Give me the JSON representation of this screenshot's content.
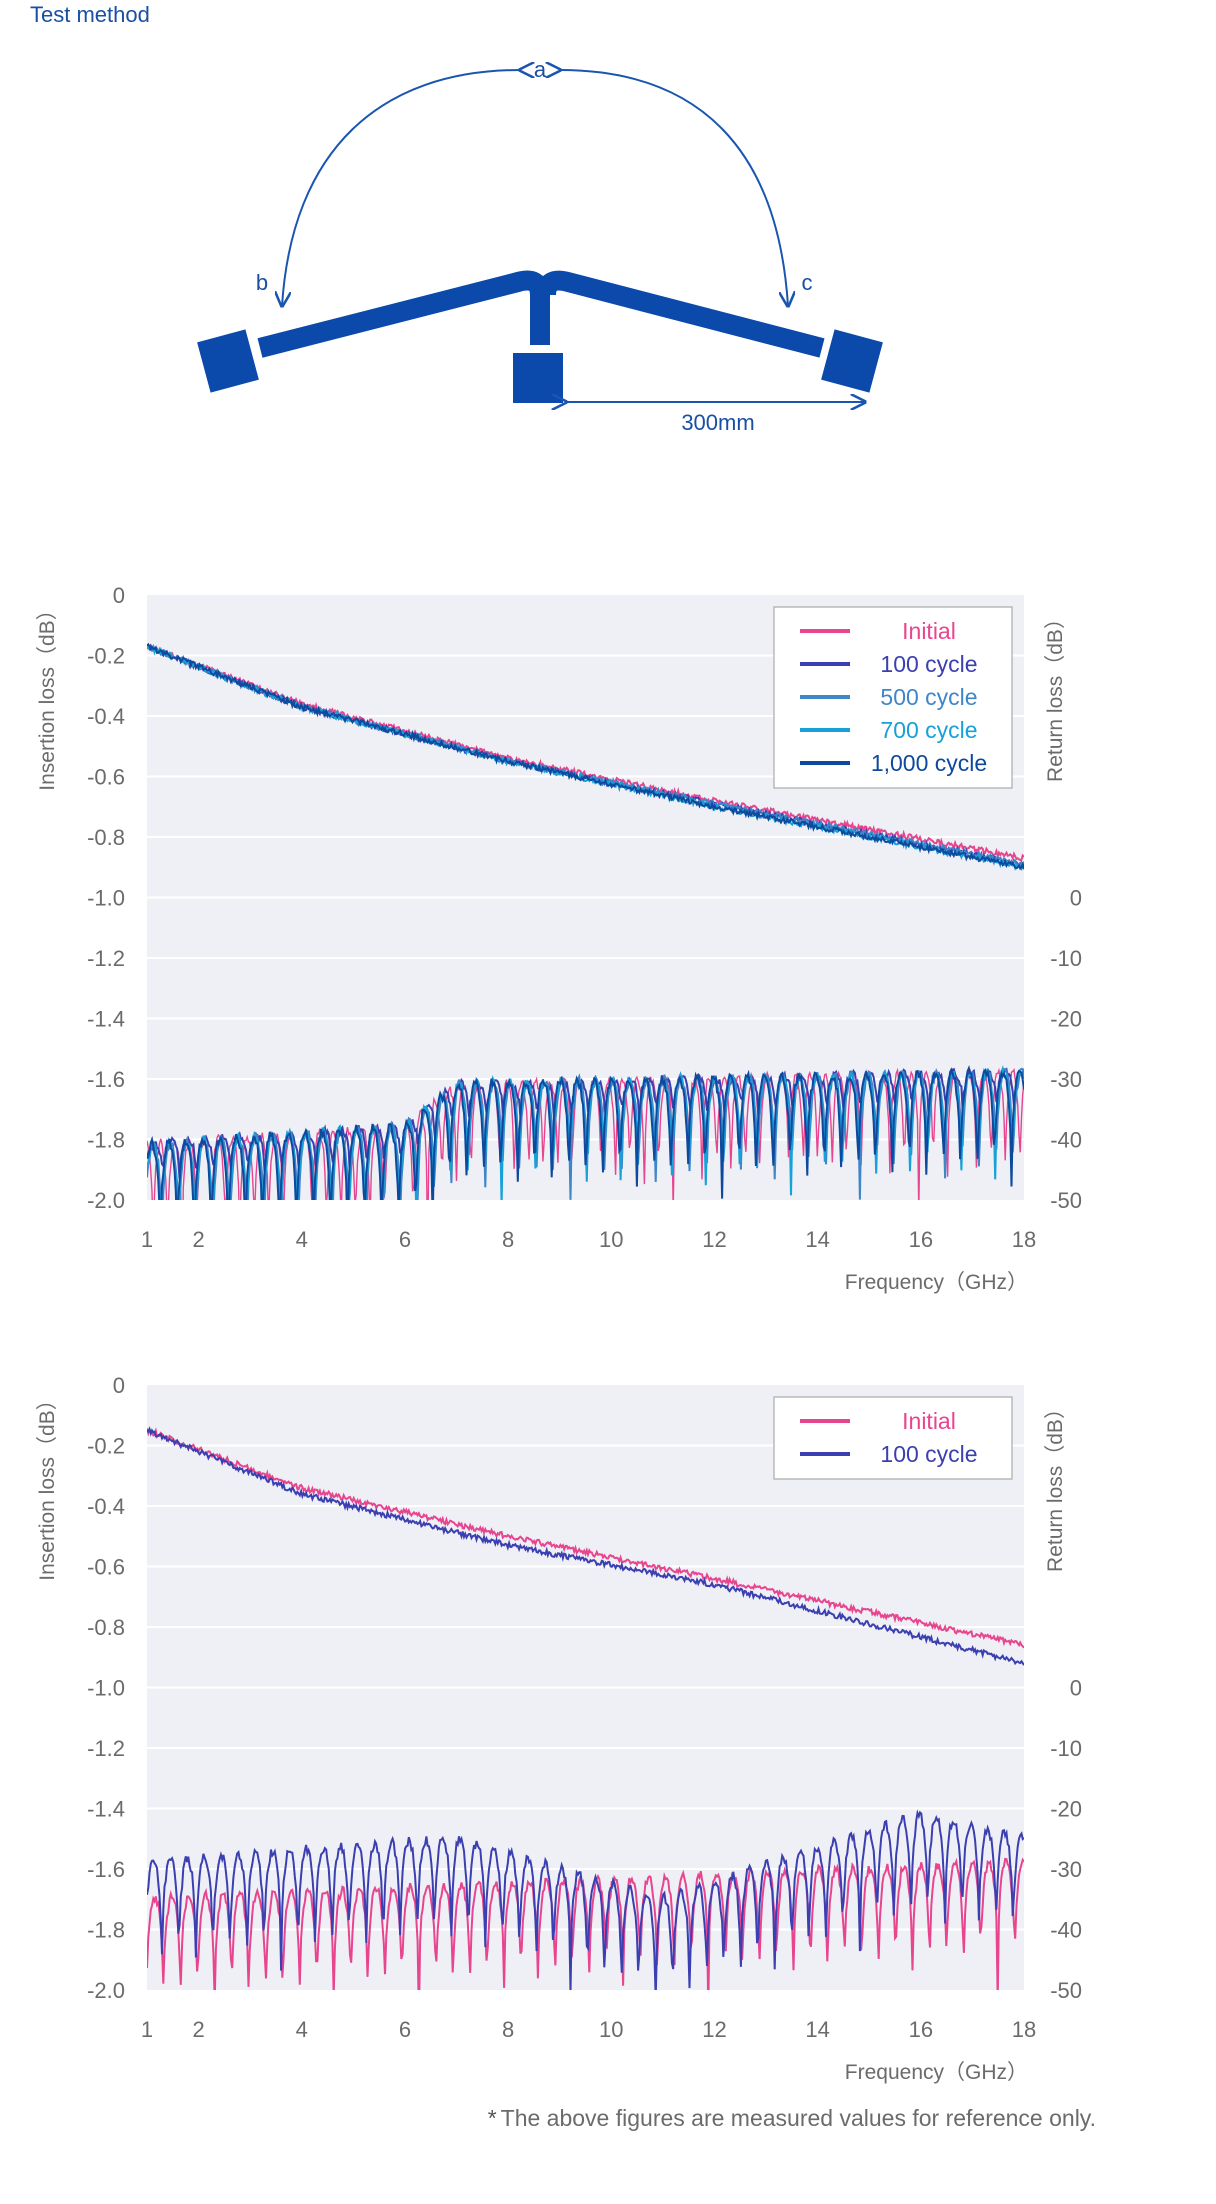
{
  "test_method": {
    "title": "Test method",
    "labels": {
      "a": "a",
      "b": "b",
      "c": "c"
    },
    "dimension": "300mm",
    "colors": {
      "cable": "#0b4aab",
      "arrow": "#1a56b0",
      "text": "#1a4fa3"
    }
  },
  "footnote": {
    "mark": "*",
    "text": "The above figures are measured values for reference only."
  },
  "chart_data": [
    {
      "type": "line",
      "ylabel_left": "Insertion loss（dB）",
      "ylabel_right": "Return loss（dB）",
      "xlabel": "Frequency（GHz）",
      "x_ticks": [
        "1",
        "2",
        "4",
        "6",
        "8",
        "10",
        "12",
        "14",
        "16",
        "18"
      ],
      "xlim": [
        1,
        18
      ],
      "y_left_ticks": [
        "0",
        "-0.2",
        "-0.4",
        "-0.6",
        "-0.8",
        "-1.0",
        "-1.2",
        "-1.4",
        "-1.6",
        "-1.8",
        "-2.0"
      ],
      "ylim_left": [
        -2.0,
        0
      ],
      "y_right_ticks": [
        "0",
        "-10",
        "-20",
        "-30",
        "-40",
        "-50"
      ],
      "ylim_right": [
        -50,
        0
      ],
      "grid": true,
      "legend_position": "top-right",
      "series": [
        {
          "name": "Initial",
          "color": "#e8458f",
          "insertion_loss": {
            "x": [
              1,
              4,
              8,
              12,
              18
            ],
            "y": [
              -0.17,
              -0.36,
              -0.54,
              -0.68,
              -0.87
            ]
          },
          "return_loss_envelope": {
            "x": [
              1,
              6,
              7,
              18
            ],
            "y": [
              -40,
              -37,
              -30,
              -28
            ]
          }
        },
        {
          "name": "100 cycle",
          "color": "#3b3fb0",
          "insertion_loss": {
            "x": [
              1,
              4,
              8,
              12,
              18
            ],
            "y": [
              -0.17,
              -0.37,
              -0.55,
              -0.69,
              -0.89
            ]
          },
          "return_loss_envelope": {
            "x": [
              1,
              6,
              7,
              18
            ],
            "y": [
              -40,
              -37,
              -30,
              -28
            ]
          }
        },
        {
          "name": "500 cycle",
          "color": "#3f86c9",
          "insertion_loss": {
            "x": [
              1,
              4,
              8,
              12,
              18
            ],
            "y": [
              -0.17,
              -0.37,
              -0.55,
              -0.69,
              -0.89
            ]
          },
          "return_loss_envelope": {
            "x": [
              1,
              6,
              7,
              18
            ],
            "y": [
              -40,
              -37,
              -30,
              -28
            ]
          }
        },
        {
          "name": "700 cycle",
          "color": "#18a0d8",
          "insertion_loss": {
            "x": [
              1,
              4,
              8,
              12,
              18
            ],
            "y": [
              -0.17,
              -0.37,
              -0.55,
              -0.7,
              -0.9
            ]
          },
          "return_loss_envelope": {
            "x": [
              1,
              6,
              7,
              18
            ],
            "y": [
              -40,
              -37,
              -30,
              -28
            ]
          }
        },
        {
          "name": "1,000 cycle",
          "color": "#0d4a9e",
          "insertion_loss": {
            "x": [
              1,
              4,
              8,
              12,
              18
            ],
            "y": [
              -0.17,
              -0.37,
              -0.55,
              -0.7,
              -0.9
            ]
          },
          "return_loss_envelope": {
            "x": [
              1,
              6,
              7,
              18
            ],
            "y": [
              -40,
              -37,
              -30,
              -28
            ]
          }
        }
      ]
    },
    {
      "type": "line",
      "ylabel_left": "Insertion loss（dB）",
      "ylabel_right": "Return loss（dB）",
      "xlabel": "Frequency（GHz）",
      "x_ticks": [
        "1",
        "2",
        "4",
        "6",
        "8",
        "10",
        "12",
        "14",
        "16",
        "18"
      ],
      "xlim": [
        1,
        18
      ],
      "y_left_ticks": [
        "0",
        "-0.2",
        "-0.4",
        "-0.6",
        "-0.8",
        "-1.0",
        "-1.2",
        "-1.4",
        "-1.6",
        "-1.8",
        "-2.0"
      ],
      "ylim_left": [
        -2.0,
        0
      ],
      "y_right_ticks": [
        "0",
        "-10",
        "-20",
        "-30",
        "-40",
        "-50"
      ],
      "ylim_right": [
        -50,
        0
      ],
      "grid": true,
      "legend_position": "top-right",
      "series": [
        {
          "name": "Initial",
          "color": "#e8458f",
          "insertion_loss": {
            "x": [
              1,
              4,
              8,
              12,
              18
            ],
            "y": [
              -0.15,
              -0.34,
              -0.5,
              -0.64,
              -0.86
            ]
          },
          "return_loss_envelope": {
            "x": [
              1,
              18
            ],
            "y": [
              -34,
              -28
            ]
          }
        },
        {
          "name": "100 cycle",
          "color": "#3b3fb0",
          "insertion_loss": {
            "x": [
              1,
              4,
              8,
              12,
              18
            ],
            "y": [
              -0.15,
              -0.36,
              -0.53,
              -0.66,
              -0.92
            ]
          },
          "return_loss_envelope": {
            "x": [
              1,
              7,
              11,
              16,
              18
            ],
            "y": [
              -28,
              -24,
              -34,
              -20,
              -24
            ]
          }
        }
      ]
    }
  ]
}
